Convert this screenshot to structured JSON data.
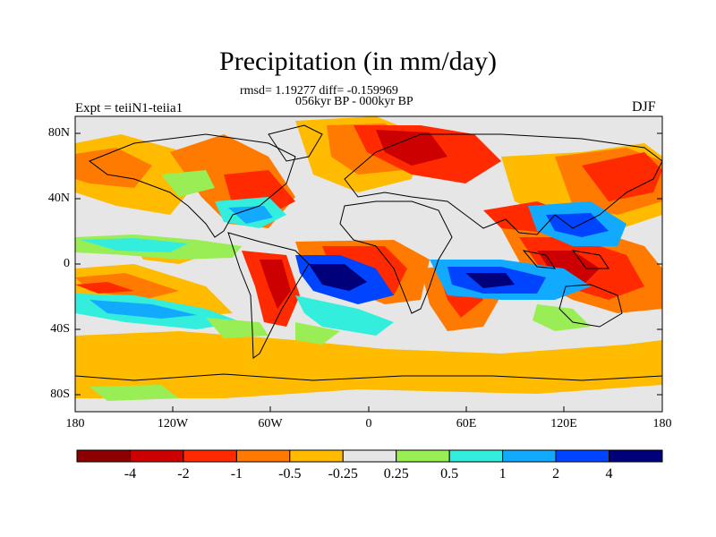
{
  "title": "Precipitation (in mm/day)",
  "stats": "rmsd= 1.19277 diff= -0.159969",
  "period": "056kyr BP - 000kyr BP",
  "experiment": "Expt = teiiN1-teiia1",
  "season": "DJF",
  "lat_ticks": [
    "80N",
    "40N",
    "0",
    "40S",
    "80S"
  ],
  "lon_ticks": [
    "180",
    "120W",
    "60W",
    "0",
    "60E",
    "120E",
    "180"
  ],
  "colorbar": {
    "labels": [
      "-4",
      "-2",
      "-1",
      "-0.5",
      "-0.25",
      "0.25",
      "0.5",
      "1",
      "2",
      "4"
    ],
    "colors": [
      "#8b0000",
      "#cc0000",
      "#ff2a00",
      "#ff7a00",
      "#ffbb00",
      "#e6e6e6",
      "#99ee55",
      "#33eedd",
      "#11aaff",
      "#0044ff",
      "#00007a"
    ]
  }
}
